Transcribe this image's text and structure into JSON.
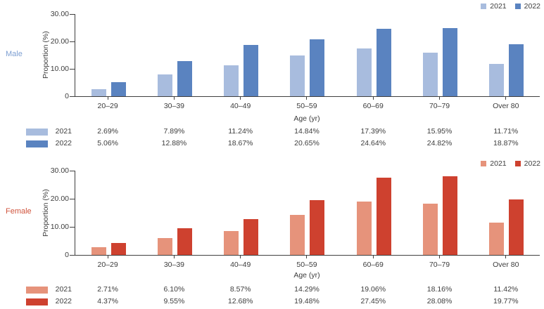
{
  "chart_data": [
    {
      "type": "bar",
      "group_label": "Male",
      "label_color": "#7d9fd2",
      "xlabel": "Age (yr)",
      "ylabel": "Proportion (%)",
      "ylim": [
        0,
        30
      ],
      "grid": false,
      "legend_position": "top-right",
      "y_ticks": [
        {
          "value": 30,
          "label": "30.00"
        },
        {
          "value": 20,
          "label": "20.00"
        },
        {
          "value": 10,
          "label": "10.00"
        },
        {
          "value": 0,
          "label": "0"
        }
      ],
      "categories": [
        "20–29",
        "30–39",
        "40–49",
        "50–59",
        "60–69",
        "70–79",
        "Over 80"
      ],
      "series": [
        {
          "name": "2021",
          "color": "#a8bcde",
          "values": [
            2.69,
            7.89,
            11.24,
            14.84,
            17.39,
            15.95,
            11.71
          ],
          "value_labels": [
            "2.69%",
            "7.89%",
            "11.24%",
            "14.84%",
            "17.39%",
            "15.95%",
            "11.71%"
          ]
        },
        {
          "name": "2022",
          "color": "#5a83c0",
          "values": [
            5.06,
            12.88,
            18.67,
            20.65,
            24.64,
            24.82,
            18.87
          ],
          "value_labels": [
            "5.06%",
            "12.88%",
            "18.67%",
            "20.65%",
            "24.64%",
            "24.82%",
            "18.87%"
          ]
        }
      ]
    },
    {
      "type": "bar",
      "group_label": "Female",
      "label_color": "#d0533c",
      "xlabel": "Age (yr)",
      "ylabel": "Proportion (%)",
      "ylim": [
        0,
        30
      ],
      "grid": false,
      "legend_position": "top-right",
      "y_ticks": [
        {
          "value": 30,
          "label": "30.00"
        },
        {
          "value": 20,
          "label": "20.00"
        },
        {
          "value": 10,
          "label": "10.00"
        },
        {
          "value": 0,
          "label": "0"
        }
      ],
      "categories": [
        "20–29",
        "30–39",
        "40–49",
        "50–59",
        "60–69",
        "70–79",
        "Over 80"
      ],
      "series": [
        {
          "name": "2021",
          "color": "#e6937b",
          "values": [
            2.71,
            6.1,
            8.57,
            14.29,
            19.06,
            18.16,
            11.42
          ],
          "value_labels": [
            "2.71%",
            "6.10%",
            "8.57%",
            "14.29%",
            "19.06%",
            "18.16%",
            "11.42%"
          ]
        },
        {
          "name": "2022",
          "color": "#ce412f",
          "values": [
            4.37,
            9.55,
            12.68,
            19.48,
            27.45,
            28.08,
            19.77
          ],
          "value_labels": [
            "4.37%",
            "9.55%",
            "12.68%",
            "19.48%",
            "27.45%",
            "28.08%",
            "19.77%"
          ]
        }
      ]
    }
  ]
}
